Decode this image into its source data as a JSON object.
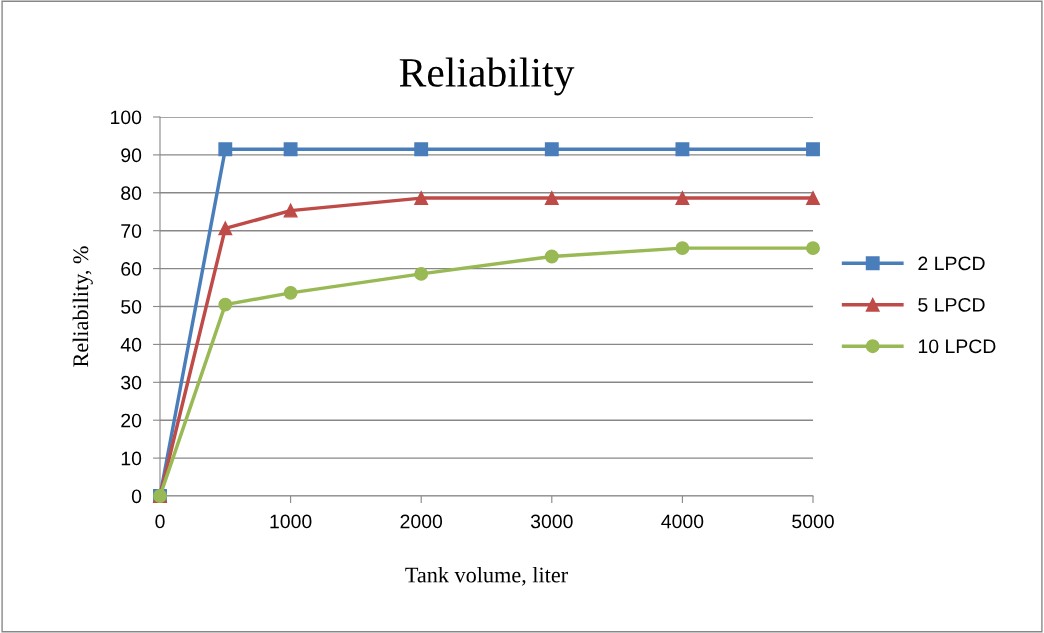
{
  "chart_data": {
    "type": "line",
    "title": "Reliability",
    "xlabel": "Tank volume, liter",
    "ylabel": "Reliability, %",
    "x": [
      0,
      500,
      1000,
      2000,
      3000,
      4000,
      5000
    ],
    "series": [
      {
        "name": "2 LPCD",
        "color": "#4a7ebb",
        "marker": "square",
        "values": [
          0,
          91.5,
          91.5,
          91.5,
          91.5,
          91.5,
          91.5
        ]
      },
      {
        "name": "5 LPCD",
        "color": "#be4b48",
        "marker": "triangle",
        "values": [
          0,
          70.6,
          75.3,
          78.6,
          78.6,
          78.6,
          78.6
        ]
      },
      {
        "name": "10 LPCD",
        "color": "#98b954",
        "marker": "circle",
        "values": [
          0,
          50.5,
          53.6,
          58.6,
          63.2,
          65.4,
          65.4
        ]
      }
    ],
    "xlim": [
      0,
      5000
    ],
    "xticks": [
      0,
      1000,
      2000,
      3000,
      4000,
      5000
    ],
    "ylim": [
      0,
      100
    ],
    "yticks": [
      0,
      10,
      20,
      30,
      40,
      50,
      60,
      70,
      80,
      90,
      100
    ],
    "grid": "y",
    "legend": "right",
    "line_style": "solid"
  }
}
